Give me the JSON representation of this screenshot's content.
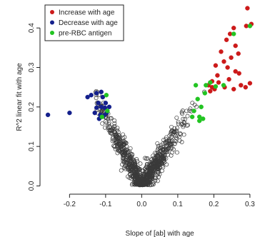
{
  "chart_data": {
    "type": "scatter",
    "title": "",
    "xlabel": "Slope of [ab] with age",
    "ylabel": "R^2 linear fit with age",
    "xlim": [
      -0.27,
      0.32
    ],
    "ylim": [
      -0.01,
      0.46
    ],
    "xticks": [
      -0.2,
      -0.1,
      0.0,
      0.1,
      0.2,
      0.3
    ],
    "xtick_labels": [
      "-0.2",
      "-0.1",
      "0.0",
      "0.1",
      "0.2",
      "0.3"
    ],
    "yticks": [
      0.0,
      0.1,
      0.2,
      0.3,
      0.4
    ],
    "ytick_labels": [
      "0.0",
      "0.1",
      "0.2",
      "0.3",
      "0.4"
    ],
    "grid": false,
    "legend_position": "top-left",
    "legend": [
      {
        "label": "Increase with age",
        "color": "#cc1a1a"
      },
      {
        "label": "Decrease with age",
        "color": "#14208c"
      },
      {
        "label": "pre-RBC antigen",
        "color": "#22c422"
      }
    ],
    "background_cloud": {
      "description_shape": "V",
      "color": "#3a3a3a",
      "marker": "open-circle",
      "x_range": [
        -0.13,
        0.18
      ],
      "y_range": [
        0.0,
        0.24
      ]
    },
    "series": [
      {
        "name": "Increase with age",
        "color": "#cc1a1a",
        "marker": "filled-circle",
        "points": [
          [
            0.293,
            0.45
          ],
          [
            0.304,
            0.41
          ],
          [
            0.255,
            0.4
          ],
          [
            0.245,
            0.385
          ],
          [
            0.29,
            0.405
          ],
          [
            0.235,
            0.37
          ],
          [
            0.26,
            0.355
          ],
          [
            0.22,
            0.34
          ],
          [
            0.268,
            0.335
          ],
          [
            0.248,
            0.325
          ],
          [
            0.228,
            0.315
          ],
          [
            0.205,
            0.305
          ],
          [
            0.238,
            0.3
          ],
          [
            0.26,
            0.29
          ],
          [
            0.27,
            0.285
          ],
          [
            0.21,
            0.28
          ],
          [
            0.242,
            0.27
          ],
          [
            0.195,
            0.265
          ],
          [
            0.3,
            0.26
          ],
          [
            0.288,
            0.25
          ],
          [
            0.275,
            0.255
          ],
          [
            0.23,
            0.25
          ],
          [
            0.185,
            0.255
          ],
          [
            0.255,
            0.245
          ],
          [
            0.19,
            0.24
          ],
          [
            0.202,
            0.245
          ],
          [
            0.195,
            0.25
          ],
          [
            0.213,
            0.262
          ]
        ]
      },
      {
        "name": "Decrease with age",
        "color": "#14208c",
        "marker": "filled-circle",
        "points": [
          [
            -0.26,
            0.18
          ],
          [
            -0.2,
            0.185
          ],
          [
            -0.15,
            0.225
          ],
          [
            -0.14,
            0.23
          ],
          [
            -0.125,
            0.235
          ],
          [
            -0.112,
            0.238
          ],
          [
            -0.108,
            0.225
          ],
          [
            -0.12,
            0.21
          ],
          [
            -0.112,
            0.2
          ],
          [
            -0.102,
            0.198
          ],
          [
            -0.125,
            0.198
          ],
          [
            -0.13,
            0.185
          ],
          [
            -0.115,
            0.18
          ],
          [
            -0.105,
            0.178
          ],
          [
            -0.118,
            0.17
          ],
          [
            -0.1,
            0.21
          ],
          [
            -0.09,
            0.2
          ],
          [
            -0.097,
            0.185
          ]
        ]
      },
      {
        "name": "pre-RBC antigen",
        "color": "#22c422",
        "marker": "filled-circle",
        "points": [
          [
            -0.098,
            0.23
          ],
          [
            -0.095,
            0.19
          ],
          [
            -0.11,
            0.175
          ],
          [
            0.15,
            0.255
          ],
          [
            0.155,
            0.22
          ],
          [
            0.165,
            0.2
          ],
          [
            0.145,
            0.19
          ],
          [
            0.16,
            0.175
          ],
          [
            0.17,
            0.17
          ],
          [
            0.178,
            0.255
          ],
          [
            0.205,
            0.252
          ],
          [
            0.227,
            0.255
          ],
          [
            0.255,
            0.385
          ],
          [
            0.3,
            0.405
          ],
          [
            0.19,
            0.262
          ],
          [
            0.175,
            0.235
          ],
          [
            0.14,
            0.175
          ],
          [
            0.16,
            0.165
          ]
        ]
      }
    ]
  }
}
